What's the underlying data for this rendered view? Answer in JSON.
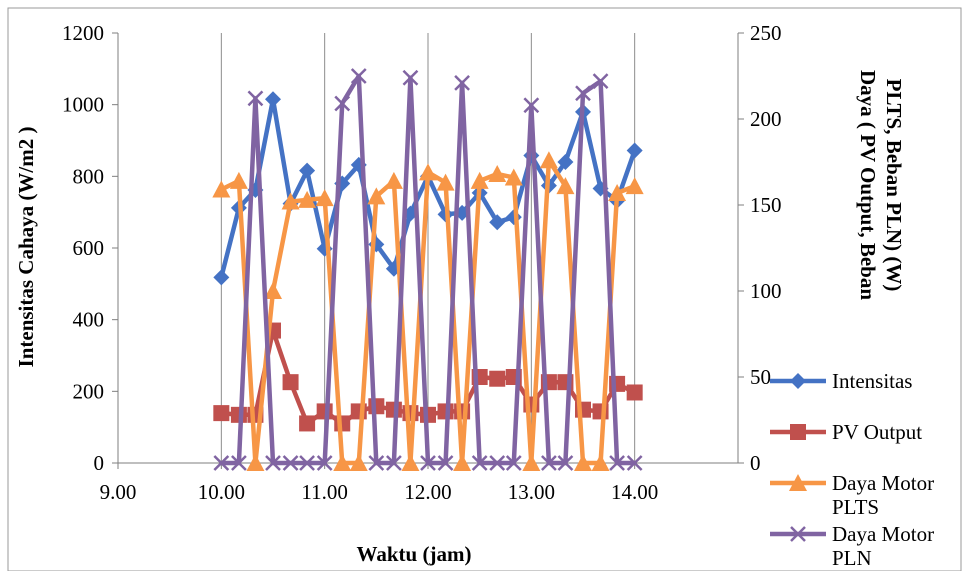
{
  "chart_data": {
    "type": "line",
    "title": "",
    "xlabel": "Waktu (jam)",
    "ylabel": "Intensitas Cahaya (W/m2 )",
    "y2label": [
      "Daya ( PV Output, Beban",
      "PLTS, Beban PLN) (W)"
    ],
    "xlim": [
      9,
      15
    ],
    "ylim": [
      0,
      1200
    ],
    "y2lim": [
      0,
      250
    ],
    "x_ticks": [
      "9.00",
      "10.00",
      "11.00",
      "12.00",
      "13.00",
      "14.00"
    ],
    "x_tick_values": [
      9,
      10,
      11,
      12,
      13,
      14
    ],
    "y_ticks": [
      "0",
      "200",
      "400",
      "600",
      "800",
      "1000",
      "1200"
    ],
    "y_tick_values": [
      0,
      200,
      400,
      600,
      800,
      1000,
      1200
    ],
    "y2_ticks": [
      "0",
      "50",
      "100",
      "150",
      "200",
      "250"
    ],
    "y2_tick_values": [
      0,
      50,
      100,
      150,
      200,
      250
    ],
    "grid": "vertical",
    "legend_position": "right",
    "x": [
      10.0,
      10.17,
      10.33,
      10.5,
      10.67,
      10.83,
      11.0,
      11.17,
      11.33,
      11.5,
      11.67,
      11.83,
      12.0,
      12.17,
      12.33,
      12.5,
      12.67,
      12.83,
      13.0,
      13.17,
      13.33,
      13.5,
      13.67,
      13.83,
      14.0
    ],
    "series": [
      {
        "name": "Intensitas",
        "axis": "left",
        "color": "#4472C4",
        "marker": "diamond",
        "values": [
          518,
          712,
          762,
          1015,
          724,
          816,
          598,
          780,
          832,
          610,
          542,
          696,
          800,
          694,
          698,
          754,
          672,
          686,
          858,
          774,
          840,
          980,
          766,
          732,
          872
        ]
      },
      {
        "name": "PV Output",
        "axis": "right",
        "color": "#C0504D",
        "marker": "square",
        "values": [
          29,
          28,
          28,
          77,
          47,
          23,
          30,
          23,
          30,
          33,
          31,
          29,
          28,
          30,
          30,
          50,
          49,
          50,
          34,
          47,
          47,
          31,
          30,
          46,
          41
        ]
      },
      {
        "name": "Daya Motor PLTS",
        "axis": "right",
        "color": "#F79646",
        "marker": "triangle",
        "values": [
          159,
          164,
          0,
          100,
          152,
          153,
          154,
          0,
          0,
          155,
          164,
          0,
          169,
          163,
          0,
          164,
          168,
          166,
          0,
          176,
          161,
          0,
          0,
          157,
          161
        ]
      },
      {
        "name": "Daya Motor PLN",
        "axis": "right",
        "color": "#8064A2",
        "marker": "x",
        "values": [
          0,
          0,
          212,
          0,
          0,
          0,
          0,
          209,
          225,
          0,
          0,
          224,
          0,
          0,
          221,
          0,
          0,
          0,
          208,
          0,
          0,
          215,
          222,
          0,
          0
        ]
      }
    ],
    "legend": [
      {
        "name": "Intensitas",
        "lines": [
          "Intensitas"
        ]
      },
      {
        "name": "PV Output",
        "lines": [
          "PV Output"
        ]
      },
      {
        "name": "Daya Motor PLTS",
        "lines": [
          "Daya Motor",
          "PLTS"
        ]
      },
      {
        "name": "Daya Motor PLN",
        "lines": [
          "Daya Motor",
          "PLN"
        ]
      }
    ]
  }
}
